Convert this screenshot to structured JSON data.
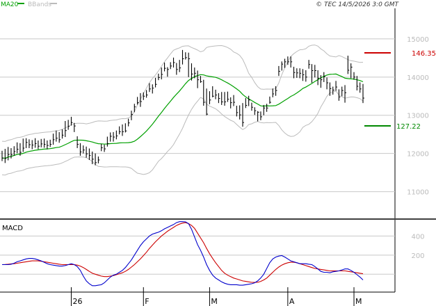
{
  "header": {
    "legend_ma": "MA20",
    "legend_bb": "BBands",
    "copyright": "© TEC 14/5/2026 3:0 GMT"
  },
  "colors": {
    "ma": "#00a000",
    "bbands": "#bbbbbb",
    "price": "#000000",
    "macd": "#0000cc",
    "signal": "#cc0000",
    "resistance": "#cc0000",
    "support": "#008800",
    "grid": "#c8c8c8",
    "border": "#000000"
  },
  "levels": {
    "resistance": {
      "value": 146.35,
      "label": "146.35"
    },
    "support": {
      "value": 127.22,
      "label": "127.22"
    }
  },
  "chart_data": [
    {
      "type": "line",
      "name": "price",
      "y_ticks": [
        110,
        120,
        130,
        140,
        150
      ],
      "y_tick_labels": [
        "11000",
        "12000",
        "13000",
        "14000",
        "15000"
      ],
      "ylim": [
        103,
        158
      ],
      "x_labels": [
        "26",
        "F",
        "M",
        "A",
        "M"
      ],
      "x_label_index": [
        23,
        47,
        69,
        95,
        117
      ],
      "bars": [
        [
          118.8,
          120.7,
          118.0
        ],
        [
          118.7,
          121.2,
          117.5
        ],
        [
          119.7,
          121.7,
          118.2
        ],
        [
          119.7,
          121.4,
          118.7
        ],
        [
          120.5,
          121.9,
          119.4
        ],
        [
          121.1,
          122.9,
          120.1
        ],
        [
          120.3,
          122.7,
          119.4
        ],
        [
          121.4,
          123.9,
          120.4
        ],
        [
          122.9,
          124.0,
          121.4
        ],
        [
          122.3,
          123.7,
          121.4
        ],
        [
          122.2,
          123.5,
          121.1
        ],
        [
          122.6,
          124.0,
          121.5
        ],
        [
          121.9,
          123.4,
          121.1
        ],
        [
          122.5,
          123.8,
          121.6
        ],
        [
          122.4,
          123.9,
          121.5
        ],
        [
          122.1,
          123.4,
          121.1
        ],
        [
          122.4,
          123.6,
          121.7
        ],
        [
          123.6,
          125.2,
          122.3
        ],
        [
          124.0,
          126.0,
          123.1
        ],
        [
          123.6,
          125.6,
          122.8
        ],
        [
          124.8,
          126.3,
          123.9
        ],
        [
          126.0,
          128.5,
          124.3
        ],
        [
          127.1,
          128.8,
          126.2
        ],
        [
          128.1,
          129.6,
          127.3
        ],
        [
          127.2,
          128.0,
          125.6
        ],
        [
          122.4,
          124.5,
          121.4
        ],
        [
          120.4,
          122.7,
          119.4
        ],
        [
          120.9,
          122.1,
          120.0
        ],
        [
          119.9,
          121.8,
          118.9
        ],
        [
          119.5,
          121.3,
          118.3
        ],
        [
          118.5,
          120.5,
          117.2
        ],
        [
          117.6,
          120.0,
          116.9
        ],
        [
          118.3,
          119.2,
          117.4
        ],
        [
          121.5,
          122.5,
          120.6
        ],
        [
          121.2,
          122.3,
          120.4
        ],
        [
          122.6,
          124.4,
          121.8
        ],
        [
          124.5,
          125.5,
          123.1
        ],
        [
          124.3,
          125.6,
          123.1
        ],
        [
          124.6,
          126.0,
          123.7
        ],
        [
          125.7,
          127.1,
          125.0
        ],
        [
          125.7,
          127.6,
          124.6
        ],
        [
          125.9,
          127.9,
          125.5
        ],
        [
          128.0,
          129.1,
          127.1
        ],
        [
          130.2,
          131.2,
          128.7
        ],
        [
          132.2,
          133.0,
          130.8
        ],
        [
          133.3,
          134.8,
          132.8
        ],
        [
          133.6,
          135.8,
          132.2
        ],
        [
          135.0,
          136.0,
          134.0
        ],
        [
          135.3,
          136.6,
          134.6
        ],
        [
          136.9,
          138.4,
          136.1
        ],
        [
          137.1,
          138.1,
          135.7
        ],
        [
          138.1,
          139.8,
          137.3
        ],
        [
          139.9,
          140.9,
          139.2
        ],
        [
          140.7,
          142.5,
          139.4
        ],
        [
          142.3,
          143.8,
          141.5
        ],
        [
          142.0,
          142.6,
          140.1
        ],
        [
          142.9,
          143.9,
          142.1
        ],
        [
          143.8,
          145.1,
          142.5
        ],
        [
          142.0,
          143.7,
          140.6
        ],
        [
          142.4,
          144.5,
          141.3
        ],
        [
          144.8,
          147.1,
          143.3
        ],
        [
          145.1,
          146.5,
          144.6
        ],
        [
          144.8,
          146.4,
          140.0
        ],
        [
          140.8,
          143.6,
          139.1
        ],
        [
          141.0,
          142.5,
          139.7
        ],
        [
          139.3,
          141.7,
          137.1
        ],
        [
          138.8,
          140.3,
          138.5
        ],
        [
          133.4,
          139.3,
          132.5
        ],
        [
          130.3,
          137.0,
          130.0
        ],
        [
          134.0,
          136.3,
          132.9
        ],
        [
          135.0,
          137.6,
          134.7
        ],
        [
          135.3,
          136.7,
          134.2
        ],
        [
          134.4,
          135.8,
          133.2
        ],
        [
          133.5,
          136.1,
          132.7
        ],
        [
          133.5,
          136.1,
          132.5
        ],
        [
          134.2,
          136.2,
          133.5
        ],
        [
          133.3,
          134.7,
          131.8
        ],
        [
          133.4,
          135.3,
          132.4
        ],
        [
          130.7,
          132.5,
          129.7
        ],
        [
          130.1,
          132.6,
          128.9
        ],
        [
          128.1,
          133.2,
          127.0
        ],
        [
          132.6,
          134.5,
          131.9
        ],
        [
          134.0,
          135.1,
          132.4
        ],
        [
          132.1,
          133.3,
          131.2
        ],
        [
          131.2,
          132.1,
          130.1
        ],
        [
          130.8,
          131.1,
          128.4
        ],
        [
          129.6,
          131.0,
          128.7
        ],
        [
          131.9,
          132.7,
          130.0
        ],
        [
          131.9,
          133.0,
          130.9
        ],
        [
          133.4,
          134.9,
          133.0
        ],
        [
          135.6,
          137.0,
          134.7
        ],
        [
          136.5,
          137.6,
          135.1
        ],
        [
          141.5,
          142.9,
          140.3
        ],
        [
          143.4,
          144.1,
          141.7
        ],
        [
          144.0,
          144.8,
          142.4
        ],
        [
          144.0,
          145.4,
          143.2
        ],
        [
          144.0,
          145.4,
          142.5
        ],
        [
          141.2,
          142.7,
          139.7
        ],
        [
          141.1,
          142.3,
          139.8
        ],
        [
          141.0,
          142.3,
          139.7
        ],
        [
          140.6,
          142.1,
          139.0
        ],
        [
          140.0,
          141.8,
          138.8
        ],
        [
          143.3,
          144.5,
          142.2
        ],
        [
          141.7,
          143.4,
          138.5
        ],
        [
          141.7,
          143.2,
          139.9
        ],
        [
          139.7,
          141.8,
          137.9
        ],
        [
          139.3,
          140.5,
          137.2
        ],
        [
          140.1,
          141.3,
          138.7
        ],
        [
          138.5,
          139.9,
          136.8
        ],
        [
          137.0,
          138.6,
          135.1
        ],
        [
          136.6,
          137.5,
          135.4
        ],
        [
          137.4,
          139.0,
          136.4
        ],
        [
          134.8,
          136.8,
          133.8
        ],
        [
          136.5,
          137.5,
          135.0
        ],
        [
          135.9,
          137.9,
          133.3
        ],
        [
          141.8,
          145.6,
          140.8
        ],
        [
          142.6,
          143.6,
          139.7
        ],
        [
          140.0,
          141.3,
          139.3
        ],
        [
          137.6,
          140.3,
          136.5
        ],
        [
          136.9,
          138.6,
          135.9
        ],
        [
          134.5,
          138.2,
          133.2
        ]
      ]
    },
    {
      "type": "line",
      "name": "MACD",
      "y_ticks": [
        200,
        400
      ],
      "y_tick_labels": [
        "200",
        "400"
      ],
      "ylim": [
        -180,
        570
      ],
      "macd": [
        100,
        100,
        100,
        105,
        115,
        130,
        140,
        150,
        160,
        165,
        165,
        160,
        150,
        140,
        125,
        110,
        100,
        95,
        90,
        85,
        85,
        90,
        100,
        110,
        100,
        80,
        40,
        -20,
        -70,
        -100,
        -120,
        -120,
        -115,
        -110,
        -90,
        -60,
        -30,
        -10,
        0,
        20,
        40,
        70,
        110,
        150,
        200,
        250,
        300,
        340,
        370,
        400,
        420,
        430,
        440,
        455,
        475,
        490,
        505,
        520,
        540,
        550,
        550,
        548,
        530,
        470,
        390,
        310,
        250,
        180,
        100,
        40,
        -10,
        -40,
        -60,
        -80,
        -95,
        -105,
        -110,
        -110,
        -110,
        -115,
        -115,
        -110,
        -105,
        -100,
        -90,
        -70,
        -40,
        0,
        60,
        120,
        160,
        180,
        190,
        195,
        180,
        160,
        140,
        130,
        120,
        110,
        110,
        110,
        105,
        100,
        80,
        55,
        30,
        20,
        20,
        15,
        25,
        30,
        35,
        45,
        55,
        55,
        40,
        20,
        -5,
        -30,
        -60
      ],
      "signal": [
        100,
        102,
        105,
        108,
        110,
        115,
        120,
        125,
        130,
        135,
        140,
        140,
        140,
        135,
        130,
        125,
        120,
        115,
        110,
        105,
        100,
        100,
        100,
        100,
        100,
        95,
        85,
        70,
        50,
        30,
        10,
        0,
        -10,
        -20,
        -25,
        -25,
        -20,
        -15,
        -5,
        5,
        15,
        30,
        50,
        75,
        100,
        130,
        160,
        195,
        230,
        270,
        305,
        340,
        370,
        400,
        425,
        450,
        470,
        490,
        510,
        525,
        535,
        540,
        530,
        510,
        480,
        430,
        380,
        330,
        270,
        215,
        165,
        120,
        80,
        40,
        10,
        -10,
        -25,
        -40,
        -50,
        -60,
        -70,
        -75,
        -80,
        -85,
        -85,
        -85,
        -75,
        -60,
        -40,
        -10,
        20,
        50,
        75,
        95,
        110,
        120,
        125,
        125,
        120,
        110,
        100,
        90,
        80,
        70,
        60,
        55,
        50,
        45,
        40,
        35,
        35,
        35,
        35,
        35,
        35,
        30,
        25,
        20,
        15,
        10,
        5
      ]
    }
  ]
}
